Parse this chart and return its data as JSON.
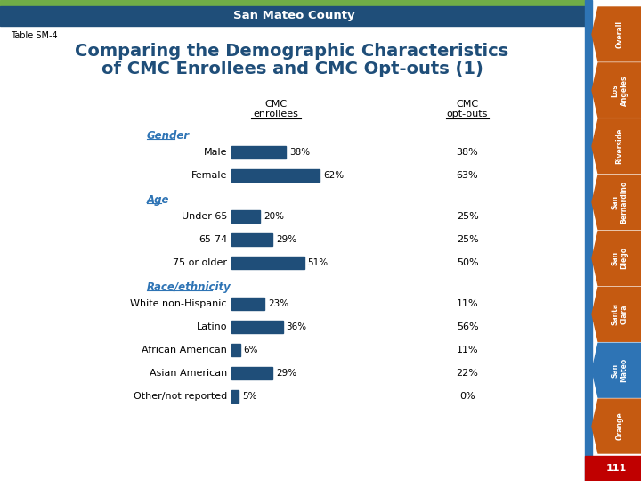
{
  "title_line1": "Comparing the Demographic Characteristics",
  "title_line2": "of CMC Enrollees and CMC Opt-outs (1)",
  "table_label": "Table SM-4",
  "header_county": "San Mateo County",
  "col1_header_line1": "CMC",
  "col1_header_line2": "enrollees",
  "col2_header_line1": "CMC",
  "col2_header_line2": "opt-outs",
  "categories": [
    {
      "label": "Gender",
      "is_header": true
    },
    {
      "label": "Male",
      "value": 38,
      "opt_out": "38%"
    },
    {
      "label": "Female",
      "value": 62,
      "opt_out": "63%"
    },
    {
      "label": "Age",
      "is_header": true
    },
    {
      "label": "Under 65",
      "value": 20,
      "opt_out": "25%"
    },
    {
      "label": "65-74",
      "value": 29,
      "opt_out": "25%"
    },
    {
      "label": "75 or older",
      "value": 51,
      "opt_out": "50%"
    },
    {
      "label": "Race/ethnicity",
      "is_header": true
    },
    {
      "label": "White non-Hispanic",
      "value": 23,
      "opt_out": "11%"
    },
    {
      "label": "Latino",
      "value": 36,
      "opt_out": "56%"
    },
    {
      "label": "African American",
      "value": 6,
      "opt_out": "11%"
    },
    {
      "label": "Asian American",
      "value": 29,
      "opt_out": "22%"
    },
    {
      "label": "Other/not reported",
      "value": 5,
      "opt_out": "0%"
    }
  ],
  "bar_color": "#1f4e79",
  "title_color": "#1f4e79",
  "header_label_color": "#2e74b5",
  "top_bar_color": "#1f4e79",
  "green_bar_color": "#70ad47",
  "orange_tab_color": "#c55a11",
  "blue_tab_color": "#2e74b5",
  "red_tab_color": "#c00000",
  "sidebar_tabs": [
    "Overall",
    "Los\nAngeles",
    "Riverside",
    "San\nBernardino",
    "San\nDiego",
    "Santa\nClara",
    "San\nMateo",
    "Orange"
  ],
  "sidebar_colors": [
    "#c55a11",
    "#c55a11",
    "#c55a11",
    "#c55a11",
    "#c55a11",
    "#c55a11",
    "#2e74b5",
    "#c55a11"
  ],
  "page_num": "111",
  "bg_color": "#ffffff"
}
